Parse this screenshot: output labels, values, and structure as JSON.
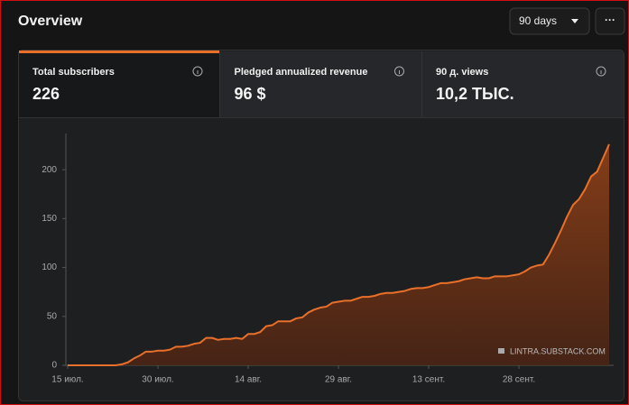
{
  "header": {
    "title": "Overview",
    "period": "90 days",
    "more": "···"
  },
  "cards": [
    {
      "label": "Total subscribers",
      "value": "226"
    },
    {
      "label": "Pledged annualized revenue",
      "value": "96 $"
    },
    {
      "label": "90 д. views",
      "value": "10,2 ТЫС."
    }
  ],
  "chart_data": {
    "type": "area",
    "color": "#e8702a",
    "watermark": "LINTRA.SUBSTACK.COM",
    "categories": [
      "15 июл.",
      null,
      null,
      null,
      null,
      null,
      null,
      null,
      null,
      null,
      null,
      null,
      null,
      null,
      null,
      "30 июл.",
      null,
      null,
      null,
      null,
      null,
      null,
      null,
      null,
      null,
      null,
      null,
      null,
      null,
      null,
      "14 авг.",
      null,
      null,
      null,
      null,
      null,
      null,
      null,
      null,
      null,
      null,
      null,
      null,
      null,
      null,
      "29 авг.",
      null,
      null,
      null,
      null,
      null,
      null,
      null,
      null,
      null,
      null,
      null,
      null,
      null,
      null,
      "13 сент.",
      null,
      null,
      null,
      null,
      null,
      null,
      null,
      null,
      null,
      null,
      null,
      null,
      null,
      null,
      "28 сент.",
      null,
      null,
      null,
      null,
      null,
      null,
      null,
      null,
      null,
      null,
      null,
      null,
      null,
      null,
      null
    ],
    "values": [
      0,
      0,
      0,
      0,
      0,
      0,
      0,
      0,
      0,
      1,
      3,
      7,
      10,
      14,
      14,
      15,
      15,
      16,
      19,
      19,
      20,
      22,
      23,
      28,
      28,
      26,
      27,
      27,
      28,
      27,
      32,
      32,
      34,
      40,
      41,
      45,
      45,
      45,
      48,
      49,
      54,
      57,
      59,
      60,
      64,
      65,
      66,
      66,
      68,
      70,
      70,
      71,
      73,
      74,
      74,
      75,
      76,
      78,
      79,
      79,
      80,
      82,
      84,
      84,
      85,
      86,
      88,
      89,
      90,
      89,
      89,
      91,
      91,
      91,
      92,
      93,
      96,
      100,
      102,
      103,
      113,
      125,
      138,
      152,
      164,
      170,
      180,
      193,
      198,
      212,
      226
    ],
    "ylim": [
      0,
      237
    ],
    "yticks": [
      0,
      50,
      100,
      150,
      200
    ],
    "grid": false
  }
}
